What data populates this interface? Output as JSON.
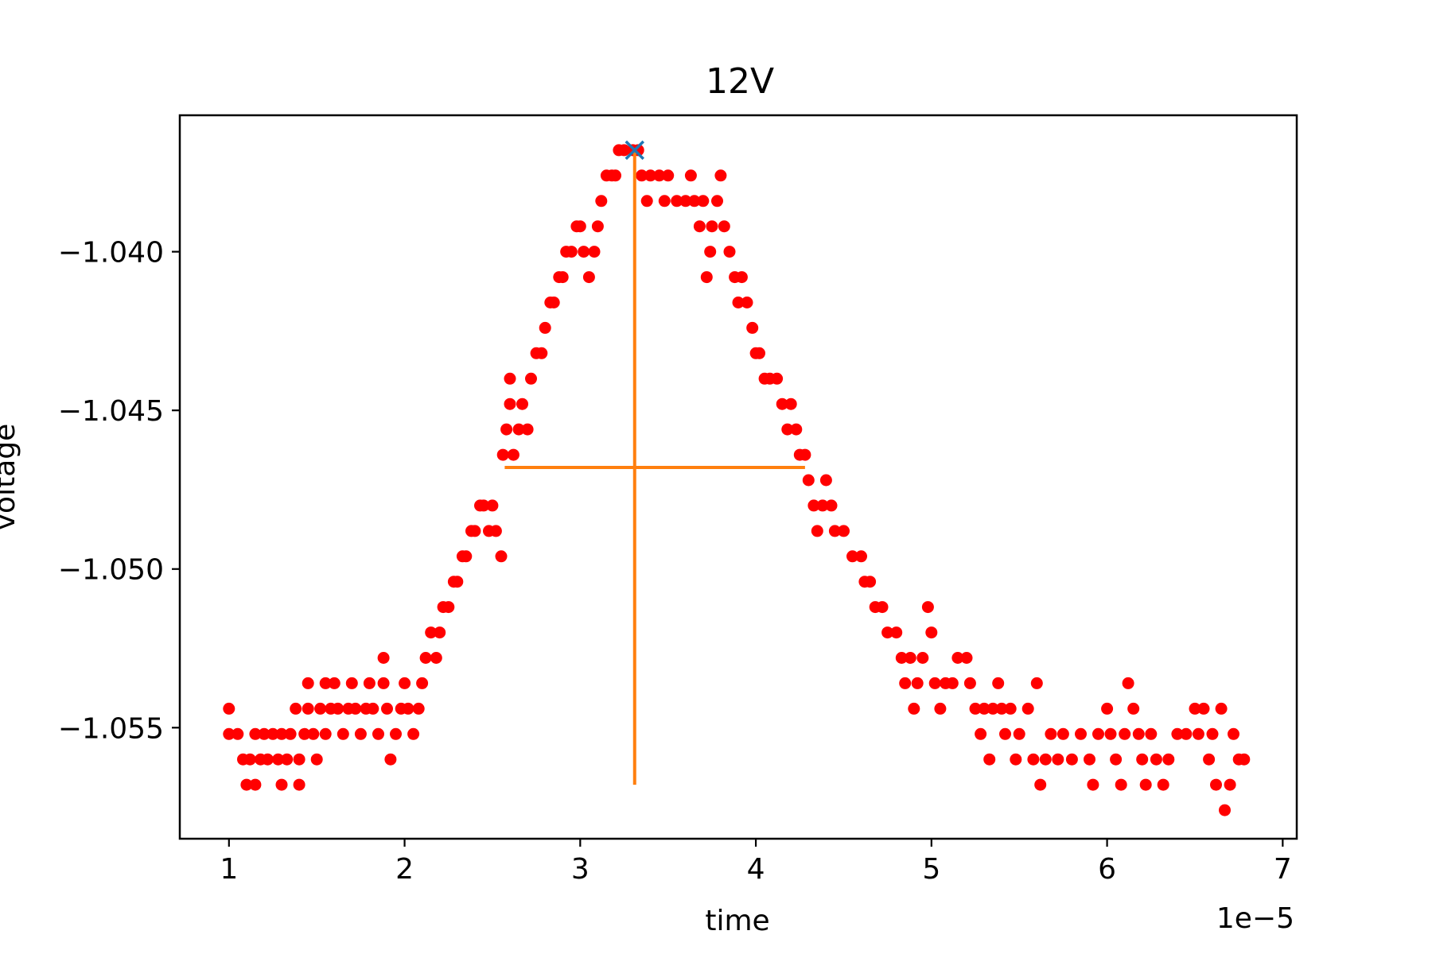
{
  "chart_data": {
    "type": "scatter",
    "title": "12V",
    "xlabel": "time",
    "ylabel": "voltage",
    "x_offset_text": "1e−5",
    "x_scale": 1e-05,
    "xlim": [
      0.72,
      7.08
    ],
    "ylim": [
      -1.0585,
      -1.0357
    ],
    "x_ticks": [
      1,
      2,
      3,
      4,
      5,
      6,
      7
    ],
    "x_tick_labels": [
      "1",
      "2",
      "3",
      "4",
      "5",
      "6",
      "7"
    ],
    "y_ticks": [
      -1.04,
      -1.045,
      -1.05,
      -1.055
    ],
    "y_tick_labels": [
      "−1.040",
      "−1.045",
      "−1.050",
      "−1.055"
    ],
    "grid": false,
    "legend": "none",
    "series": [
      {
        "color": "#ff0000",
        "marker": "circle",
        "points": [
          [
            1.0,
            -1.0544
          ],
          [
            1.0,
            -1.0552
          ],
          [
            1.05,
            -1.0552
          ],
          [
            1.08,
            -1.056
          ],
          [
            1.1,
            -1.0568
          ],
          [
            1.12,
            -1.056
          ],
          [
            1.15,
            -1.0568
          ],
          [
            1.15,
            -1.0552
          ],
          [
            1.18,
            -1.056
          ],
          [
            1.2,
            -1.0552
          ],
          [
            1.22,
            -1.056
          ],
          [
            1.25,
            -1.0552
          ],
          [
            1.28,
            -1.056
          ],
          [
            1.3,
            -1.0568
          ],
          [
            1.3,
            -1.0552
          ],
          [
            1.33,
            -1.056
          ],
          [
            1.35,
            -1.0552
          ],
          [
            1.38,
            -1.0544
          ],
          [
            1.4,
            -1.056
          ],
          [
            1.4,
            -1.0568
          ],
          [
            1.43,
            -1.0552
          ],
          [
            1.45,
            -1.0536
          ],
          [
            1.45,
            -1.0544
          ],
          [
            1.48,
            -1.0552
          ],
          [
            1.5,
            -1.056
          ],
          [
            1.52,
            -1.0544
          ],
          [
            1.55,
            -1.0536
          ],
          [
            1.55,
            -1.0552
          ],
          [
            1.58,
            -1.0544
          ],
          [
            1.6,
            -1.0536
          ],
          [
            1.62,
            -1.0544
          ],
          [
            1.65,
            -1.0552
          ],
          [
            1.68,
            -1.0544
          ],
          [
            1.7,
            -1.0536
          ],
          [
            1.72,
            -1.0544
          ],
          [
            1.75,
            -1.0552
          ],
          [
            1.78,
            -1.0544
          ],
          [
            1.8,
            -1.0536
          ],
          [
            1.82,
            -1.0544
          ],
          [
            1.85,
            -1.0552
          ],
          [
            1.88,
            -1.0536
          ],
          [
            1.88,
            -1.0528
          ],
          [
            1.9,
            -1.0544
          ],
          [
            1.92,
            -1.056
          ],
          [
            1.95,
            -1.0552
          ],
          [
            1.98,
            -1.0544
          ],
          [
            2.0,
            -1.0536
          ],
          [
            2.02,
            -1.0544
          ],
          [
            2.05,
            -1.0552
          ],
          [
            2.08,
            -1.0544
          ],
          [
            2.1,
            -1.0536
          ],
          [
            2.12,
            -1.0528
          ],
          [
            2.15,
            -1.052
          ],
          [
            2.18,
            -1.0528
          ],
          [
            2.2,
            -1.052
          ],
          [
            2.22,
            -1.0512
          ],
          [
            2.25,
            -1.0512
          ],
          [
            2.28,
            -1.0504
          ],
          [
            2.3,
            -1.0504
          ],
          [
            2.33,
            -1.0496
          ],
          [
            2.35,
            -1.0496
          ],
          [
            2.38,
            -1.0488
          ],
          [
            2.4,
            -1.0488
          ],
          [
            2.43,
            -1.048
          ],
          [
            2.45,
            -1.048
          ],
          [
            2.48,
            -1.0488
          ],
          [
            2.5,
            -1.048
          ],
          [
            2.52,
            -1.0488
          ],
          [
            2.55,
            -1.0496
          ],
          [
            2.56,
            -1.0464
          ],
          [
            2.58,
            -1.0456
          ],
          [
            2.6,
            -1.0448
          ],
          [
            2.6,
            -1.044
          ],
          [
            2.62,
            -1.0464
          ],
          [
            2.65,
            -1.0456
          ],
          [
            2.67,
            -1.0448
          ],
          [
            2.7,
            -1.0456
          ],
          [
            2.72,
            -1.044
          ],
          [
            2.75,
            -1.0432
          ],
          [
            2.78,
            -1.0432
          ],
          [
            2.8,
            -1.0424
          ],
          [
            2.83,
            -1.0416
          ],
          [
            2.85,
            -1.0416
          ],
          [
            2.88,
            -1.0408
          ],
          [
            2.9,
            -1.0408
          ],
          [
            2.92,
            -1.04
          ],
          [
            2.95,
            -1.04
          ],
          [
            2.98,
            -1.0392
          ],
          [
            3.0,
            -1.0392
          ],
          [
            3.02,
            -1.04
          ],
          [
            3.05,
            -1.0408
          ],
          [
            3.08,
            -1.04
          ],
          [
            3.1,
            -1.0392
          ],
          [
            3.12,
            -1.0384
          ],
          [
            3.15,
            -1.0376
          ],
          [
            3.18,
            -1.0376
          ],
          [
            3.2,
            -1.0376
          ],
          [
            3.22,
            -1.0368
          ],
          [
            3.25,
            -1.0368
          ],
          [
            3.3,
            -1.0368
          ],
          [
            3.33,
            -1.0368
          ],
          [
            3.35,
            -1.0376
          ],
          [
            3.38,
            -1.0384
          ],
          [
            3.4,
            -1.0376
          ],
          [
            3.45,
            -1.0376
          ],
          [
            3.48,
            -1.0384
          ],
          [
            3.5,
            -1.0376
          ],
          [
            3.55,
            -1.0384
          ],
          [
            3.6,
            -1.0384
          ],
          [
            3.63,
            -1.0376
          ],
          [
            3.65,
            -1.0384
          ],
          [
            3.68,
            -1.0392
          ],
          [
            3.7,
            -1.0384
          ],
          [
            3.72,
            -1.0408
          ],
          [
            3.74,
            -1.04
          ],
          [
            3.75,
            -1.0392
          ],
          [
            3.78,
            -1.0384
          ],
          [
            3.8,
            -1.0376
          ],
          [
            3.82,
            -1.0392
          ],
          [
            3.85,
            -1.04
          ],
          [
            3.88,
            -1.0408
          ],
          [
            3.9,
            -1.0416
          ],
          [
            3.92,
            -1.0408
          ],
          [
            3.95,
            -1.0416
          ],
          [
            3.98,
            -1.0424
          ],
          [
            4.0,
            -1.0432
          ],
          [
            4.02,
            -1.0432
          ],
          [
            4.05,
            -1.044
          ],
          [
            4.08,
            -1.044
          ],
          [
            4.12,
            -1.044
          ],
          [
            4.15,
            -1.0448
          ],
          [
            4.18,
            -1.0456
          ],
          [
            4.2,
            -1.0448
          ],
          [
            4.23,
            -1.0456
          ],
          [
            4.25,
            -1.0464
          ],
          [
            4.28,
            -1.0464
          ],
          [
            4.3,
            -1.0472
          ],
          [
            4.33,
            -1.048
          ],
          [
            4.35,
            -1.0488
          ],
          [
            4.38,
            -1.048
          ],
          [
            4.4,
            -1.0472
          ],
          [
            4.43,
            -1.048
          ],
          [
            4.45,
            -1.0488
          ],
          [
            4.5,
            -1.0488
          ],
          [
            4.55,
            -1.0496
          ],
          [
            4.6,
            -1.0496
          ],
          [
            4.62,
            -1.0504
          ],
          [
            4.65,
            -1.0504
          ],
          [
            4.68,
            -1.0512
          ],
          [
            4.72,
            -1.0512
          ],
          [
            4.75,
            -1.052
          ],
          [
            4.8,
            -1.052
          ],
          [
            4.83,
            -1.0528
          ],
          [
            4.85,
            -1.0536
          ],
          [
            4.88,
            -1.0528
          ],
          [
            4.9,
            -1.0544
          ],
          [
            4.92,
            -1.0536
          ],
          [
            4.95,
            -1.0528
          ],
          [
            4.98,
            -1.0512
          ],
          [
            5.0,
            -1.052
          ],
          [
            5.02,
            -1.0536
          ],
          [
            5.05,
            -1.0544
          ],
          [
            5.08,
            -1.0536
          ],
          [
            5.12,
            -1.0536
          ],
          [
            5.15,
            -1.0528
          ],
          [
            5.2,
            -1.0528
          ],
          [
            5.22,
            -1.0536
          ],
          [
            5.25,
            -1.0544
          ],
          [
            5.28,
            -1.0552
          ],
          [
            5.3,
            -1.0544
          ],
          [
            5.33,
            -1.056
          ],
          [
            5.35,
            -1.0544
          ],
          [
            5.38,
            -1.0536
          ],
          [
            5.4,
            -1.0544
          ],
          [
            5.42,
            -1.0552
          ],
          [
            5.45,
            -1.0544
          ],
          [
            5.48,
            -1.056
          ],
          [
            5.5,
            -1.0552
          ],
          [
            5.55,
            -1.0544
          ],
          [
            5.58,
            -1.056
          ],
          [
            5.6,
            -1.0536
          ],
          [
            5.62,
            -1.0568
          ],
          [
            5.65,
            -1.056
          ],
          [
            5.68,
            -1.0552
          ],
          [
            5.72,
            -1.056
          ],
          [
            5.75,
            -1.0552
          ],
          [
            5.8,
            -1.056
          ],
          [
            5.85,
            -1.0552
          ],
          [
            5.9,
            -1.056
          ],
          [
            5.92,
            -1.0568
          ],
          [
            5.95,
            -1.0552
          ],
          [
            6.0,
            -1.0544
          ],
          [
            6.02,
            -1.0552
          ],
          [
            6.05,
            -1.056
          ],
          [
            6.08,
            -1.0568
          ],
          [
            6.1,
            -1.0552
          ],
          [
            6.12,
            -1.0536
          ],
          [
            6.15,
            -1.0544
          ],
          [
            6.18,
            -1.0552
          ],
          [
            6.2,
            -1.056
          ],
          [
            6.22,
            -1.0568
          ],
          [
            6.25,
            -1.0552
          ],
          [
            6.28,
            -1.056
          ],
          [
            6.32,
            -1.0568
          ],
          [
            6.35,
            -1.056
          ],
          [
            6.4,
            -1.0552
          ],
          [
            6.45,
            -1.0552
          ],
          [
            6.5,
            -1.0544
          ],
          [
            6.52,
            -1.0552
          ],
          [
            6.55,
            -1.0544
          ],
          [
            6.58,
            -1.056
          ],
          [
            6.6,
            -1.0552
          ],
          [
            6.62,
            -1.0568
          ],
          [
            6.65,
            -1.0544
          ],
          [
            6.67,
            -1.0576
          ],
          [
            6.7,
            -1.0568
          ],
          [
            6.72,
            -1.0552
          ],
          [
            6.75,
            -1.056
          ],
          [
            6.78,
            -1.056
          ]
        ]
      }
    ],
    "peak_marker": {
      "x": 3.31,
      "y": -1.0368,
      "color": "#1f77b4",
      "marker": "x"
    },
    "vertical_line": {
      "x": 3.31,
      "y_from": -1.0568,
      "y_to": -1.0368,
      "color": "#ff7f0e"
    },
    "horizontal_line": {
      "y": -1.0468,
      "x_from": 2.57,
      "x_to": 4.28,
      "color": "#ff7f0e"
    }
  }
}
